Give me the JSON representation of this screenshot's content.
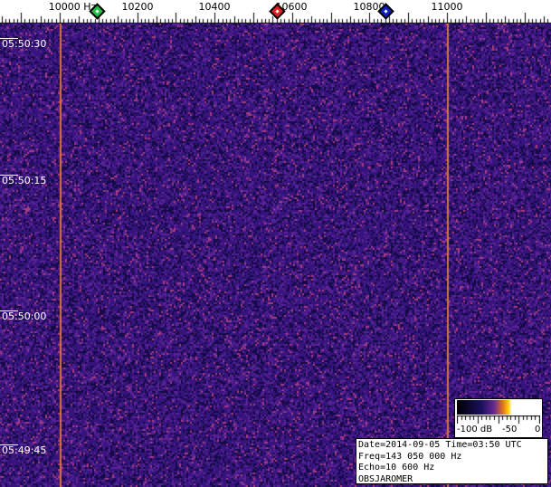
{
  "frequency_axis": {
    "labels": [
      {
        "text": "10000 Hz",
        "hz": 10000
      },
      {
        "text": "10200",
        "hz": 10200
      },
      {
        "text": "10400",
        "hz": 10400
      },
      {
        "text": "10600",
        "hz": 10600
      },
      {
        "text": "10800",
        "hz": 10800
      },
      {
        "text": "11000",
        "hz": 11000
      }
    ]
  },
  "markers": [
    {
      "color": "#20c040",
      "hz": 10095
    },
    {
      "color": "#e02020",
      "hz": 10560
    },
    {
      "color": "#1020c0",
      "hz": 10840
    }
  ],
  "time_axis": {
    "labels": [
      "05:50:30",
      "05:50:15",
      "05:50:00",
      "05:49:45"
    ]
  },
  "carrier_lines_hz": [
    10000,
    11000
  ],
  "colors": {
    "background": "#3a1a78",
    "line": "#e07040"
  },
  "color_scale": {
    "min_label": "-100 dB",
    "mid_label": "-50",
    "max_label": "0"
  },
  "info": {
    "date": "Date=2014-09-05 Time=03:50 UTC",
    "freq": "Freq=143 050 000 Hz",
    "echo": "Echo=10 600 Hz",
    "observer": "OBSJAROMER"
  }
}
